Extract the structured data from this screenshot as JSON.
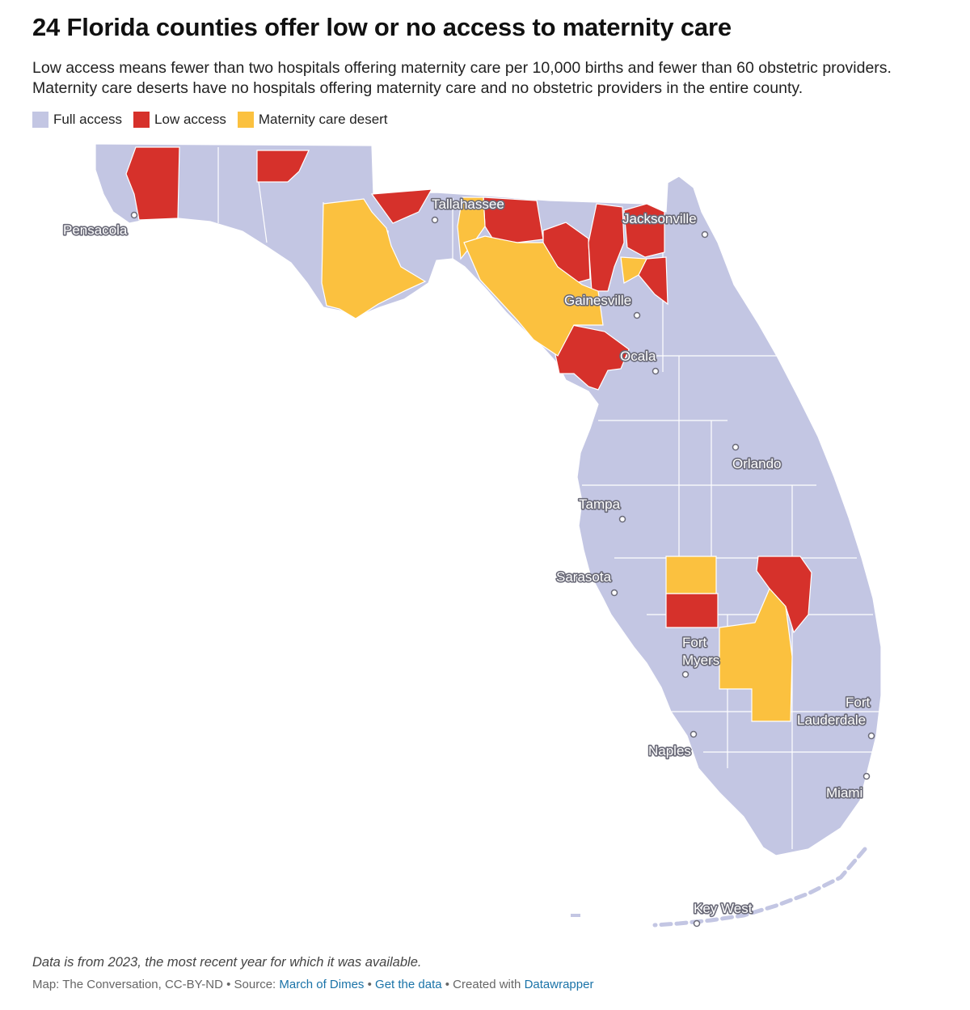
{
  "title": "24 Florida counties offer low or no access to maternity care",
  "description": "Low access means fewer than two hospitals offering maternity care per 10,000 births and fewer than 60 obstetric providers. Maternity care deserts have no hospitals offering maternity care and no obstetric providers in the entire county.",
  "legend": [
    {
      "label": "Full access",
      "color": "#c3c6e3"
    },
    {
      "label": "Low access",
      "color": "#d6312b"
    },
    {
      "label": "Maternity care desert",
      "color": "#fbc13f"
    }
  ],
  "cities": {
    "pensacola": "Pensacola",
    "tallahassee": "Tallahassee",
    "jacksonville": "Jacksonville",
    "gainesville": "Gainesville",
    "ocala": "Ocala",
    "orlando": "Orlando",
    "tampa": "Tampa",
    "sarasota": "Sarasota",
    "fort_myers_1": "Fort",
    "fort_myers_2": "Myers",
    "fort_lauderdale_1": "Fort",
    "fort_lauderdale_2": "Lauderdale",
    "naples": "Naples",
    "miami": "Miami",
    "key_west": "Key West"
  },
  "footer": {
    "note": "Data is from 2023, the most recent year for which it was available.",
    "credit": "Map: The Conversation, CC-BY-ND • Source:",
    "source_link": "March of Dimes",
    "sep1": "•",
    "data_link": "Get the data",
    "sep2": "• Created with",
    "tool_link": "Datawrapper"
  }
}
